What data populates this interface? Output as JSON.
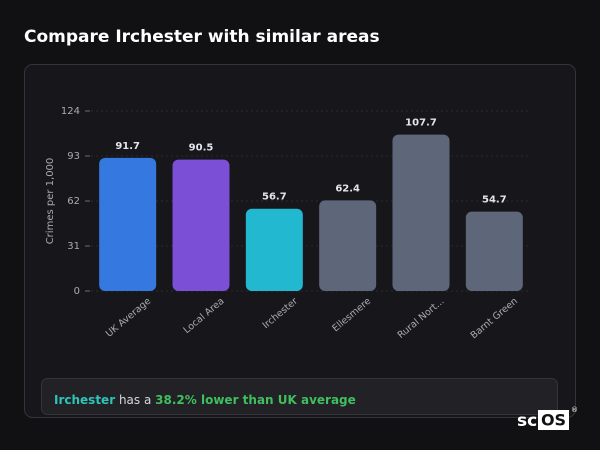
{
  "chart_data": {
    "type": "bar",
    "title": "Compare Irchester with similar areas",
    "y_label": "Crimes per 1,000",
    "categories": [
      "UK Average",
      "Local Area",
      "Irchester",
      "Ellesmere",
      "Rural Nort...",
      "Barnt Green"
    ],
    "values": [
      91.7,
      90.5,
      56.7,
      62.4,
      107.7,
      54.7
    ],
    "colors": [
      "#3578e0",
      "#7b4fd6",
      "#22b8d0",
      "#5d6779",
      "#5d6779",
      "#5d6779"
    ],
    "ylim": [
      0,
      124
    ],
    "yticks": [
      0,
      31,
      62,
      93,
      124
    ],
    "grid": true
  },
  "summary": {
    "area": "Irchester",
    "text": "has a",
    "highlight": "38.2% lower than UK average"
  },
  "branding": {
    "logo_left": "sc",
    "logo_right": "OS",
    "mark": "®"
  }
}
